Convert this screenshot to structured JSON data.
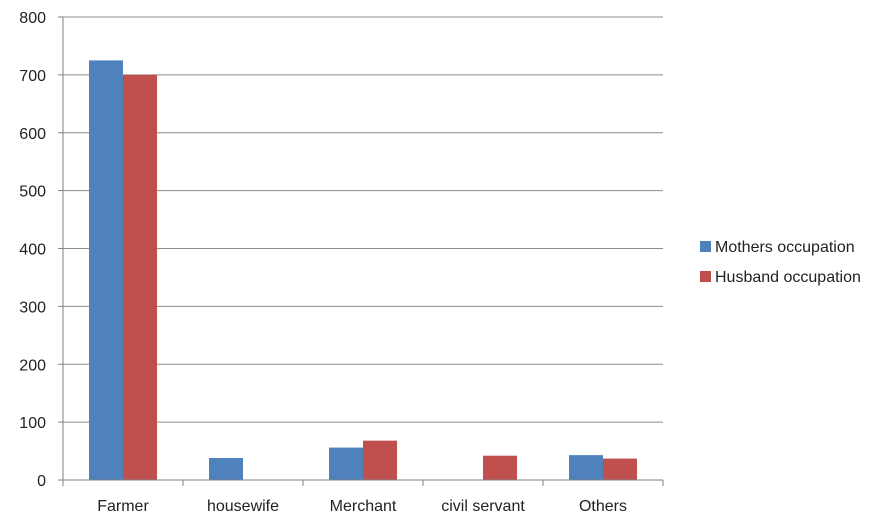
{
  "chart_data": {
    "type": "bar",
    "categories": [
      "Farmer",
      "housewife",
      "Merchant",
      "civil servant",
      "Others"
    ],
    "series": [
      {
        "name": "Mothers occupation",
        "color": "#4F81BD",
        "values": [
          725,
          38,
          56,
          0,
          43
        ]
      },
      {
        "name": "Husband occupation",
        "color": "#C0504D",
        "values": [
          700,
          0,
          68,
          42,
          37
        ]
      }
    ],
    "ylim": [
      0,
      800
    ],
    "yticks": [
      "0",
      "100",
      "200",
      "300",
      "400",
      "500",
      "600",
      "700",
      "800"
    ],
    "grid": true,
    "legend_position": "right"
  }
}
